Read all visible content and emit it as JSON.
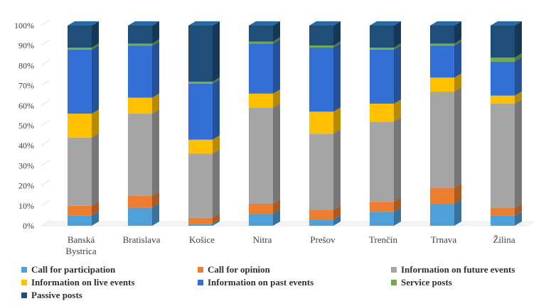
{
  "chart_data": {
    "type": "bar",
    "stacked": true,
    "percent": true,
    "three_d": true,
    "categories": [
      "Banská Bystrica",
      "Bratislava",
      "Košice",
      "Nitra",
      "Prešov",
      "Trenčín",
      "Trnava",
      "Žilina"
    ],
    "category_labels": [
      [
        "Banská",
        "Bystrica"
      ],
      [
        "Bratislava"
      ],
      [
        "Košice"
      ],
      [
        "Nitra"
      ],
      [
        "Prešov"
      ],
      [
        "Trenčín"
      ],
      [
        "Trnava"
      ],
      [
        "Žilina"
      ]
    ],
    "series": [
      {
        "name": "Call for participation",
        "color": "#4f9fd9",
        "values": [
          5,
          9,
          1,
          6,
          3,
          7,
          11,
          5
        ]
      },
      {
        "name": "Call for opinion",
        "color": "#ed7d31",
        "values": [
          5,
          6,
          3,
          5,
          5,
          5,
          8,
          4
        ]
      },
      {
        "name": "Information on future events",
        "color": "#a5a5a5",
        "values": [
          34,
          41,
          32,
          48,
          38,
          40,
          48,
          52
        ]
      },
      {
        "name": "Information on live events",
        "color": "#ffc000",
        "values": [
          12,
          8,
          7,
          7,
          11,
          9,
          7,
          4
        ]
      },
      {
        "name": "Information on past events",
        "color": "#3370d6",
        "values": [
          32,
          26,
          28,
          25,
          32,
          27,
          16,
          17
        ]
      },
      {
        "name": "Service posts",
        "color": "#70ad47",
        "values": [
          1,
          1,
          1,
          1,
          1,
          1,
          1,
          2
        ]
      },
      {
        "name": "Passive posts",
        "color": "#1f4e79",
        "values": [
          11,
          9,
          28,
          8,
          10,
          11,
          9,
          16
        ]
      }
    ],
    "y_ticks": [
      "0%",
      "10%",
      "20%",
      "30%",
      "40%",
      "50%",
      "60%",
      "70%",
      "80%",
      "90%",
      "100%"
    ],
    "ylim": [
      0,
      100
    ],
    "grid": false,
    "legend": "bottom"
  }
}
